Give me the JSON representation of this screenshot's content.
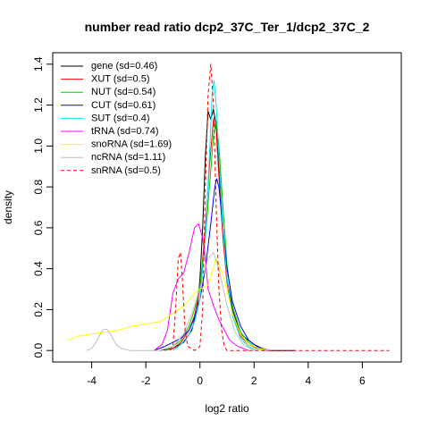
{
  "chart_data": {
    "type": "line",
    "title": "number read ratio dcp2_37C_Ter_1/dcp2_37C_2",
    "xlabel": "log2 ratio",
    "ylabel": "density",
    "xlim": [
      -5,
      7
    ],
    "ylim": [
      0,
      1.4
    ],
    "x_ticks": [
      -4,
      -2,
      0,
      2,
      4,
      6
    ],
    "x_tick_labels": [
      "-4",
      "-2",
      "0",
      "2",
      "4",
      "6"
    ],
    "y_ticks": [
      0,
      0.2,
      0.4,
      0.6,
      0.8,
      1.0,
      1.2,
      1.4
    ],
    "y_tick_labels": [
      "0.0",
      "0.2",
      "0.4",
      "0.6",
      "0.8",
      "1.0",
      "1.2",
      "1.4"
    ],
    "grid": false,
    "legend_position": "top-left",
    "series": [
      {
        "name": "gene (sd=0.46)",
        "color": "#000000",
        "dash": "solid",
        "points": [
          [
            -1.5,
            0
          ],
          [
            -1.0,
            0.01
          ],
          [
            -0.6,
            0.04
          ],
          [
            -0.3,
            0.1
          ],
          [
            -0.1,
            0.2
          ],
          [
            0.0,
            0.35
          ],
          [
            0.1,
            0.6
          ],
          [
            0.2,
            0.95
          ],
          [
            0.3,
            1.17
          ],
          [
            0.4,
            1.13
          ],
          [
            0.5,
            1.18
          ],
          [
            0.6,
            1.1
          ],
          [
            0.7,
            0.9
          ],
          [
            0.85,
            0.6
          ],
          [
            1.0,
            0.35
          ],
          [
            1.2,
            0.2
          ],
          [
            1.5,
            0.08
          ],
          [
            1.8,
            0.05
          ],
          [
            2.0,
            0.03
          ],
          [
            2.3,
            0.01
          ],
          [
            2.6,
            0
          ],
          [
            3.5,
            0
          ]
        ]
      },
      {
        "name": "XUT (sd=0.5)",
        "color": "#ff0000",
        "dash": "solid",
        "points": [
          [
            -1.3,
            0
          ],
          [
            -1.0,
            0.01
          ],
          [
            -0.7,
            0.04
          ],
          [
            -0.4,
            0.1
          ],
          [
            -0.2,
            0.17
          ],
          [
            0.0,
            0.3
          ],
          [
            0.2,
            0.6
          ],
          [
            0.35,
            0.9
          ],
          [
            0.5,
            1.13
          ],
          [
            0.6,
            1.08
          ],
          [
            0.7,
            0.85
          ],
          [
            0.85,
            0.55
          ],
          [
            1.0,
            0.33
          ],
          [
            1.2,
            0.18
          ],
          [
            1.5,
            0.07
          ],
          [
            1.8,
            0.03
          ],
          [
            2.1,
            0.01
          ],
          [
            2.5,
            0
          ]
        ]
      },
      {
        "name": "NUT (sd=0.54)",
        "color": "#00cd00",
        "dash": "solid",
        "points": [
          [
            -1.3,
            0
          ],
          [
            -1.0,
            0.02
          ],
          [
            -0.7,
            0.05
          ],
          [
            -0.4,
            0.12
          ],
          [
            -0.2,
            0.2
          ],
          [
            0.0,
            0.32
          ],
          [
            0.2,
            0.55
          ],
          [
            0.35,
            0.8
          ],
          [
            0.5,
            1.05
          ],
          [
            0.6,
            1.12
          ],
          [
            0.7,
            1.0
          ],
          [
            0.85,
            0.7
          ],
          [
            1.0,
            0.42
          ],
          [
            1.2,
            0.22
          ],
          [
            1.5,
            0.09
          ],
          [
            1.8,
            0.04
          ],
          [
            2.1,
            0.01
          ],
          [
            2.5,
            0
          ]
        ]
      },
      {
        "name": "CUT (sd=0.61)",
        "color": "#0000ff",
        "dash": "solid",
        "points": [
          [
            -1.7,
            0
          ],
          [
            -1.3,
            0.02
          ],
          [
            -1.0,
            0.04
          ],
          [
            -0.7,
            0.06
          ],
          [
            -0.4,
            0.1
          ],
          [
            -0.2,
            0.16
          ],
          [
            0.0,
            0.25
          ],
          [
            0.2,
            0.4
          ],
          [
            0.4,
            0.62
          ],
          [
            0.55,
            0.8
          ],
          [
            0.62,
            0.84
          ],
          [
            0.7,
            0.8
          ],
          [
            0.85,
            0.6
          ],
          [
            1.0,
            0.4
          ],
          [
            1.2,
            0.24
          ],
          [
            1.5,
            0.12
          ],
          [
            1.8,
            0.05
          ],
          [
            2.1,
            0.02
          ],
          [
            2.5,
            0
          ]
        ]
      },
      {
        "name": "SUT (sd=0.4)",
        "color": "#00e5ee",
        "dash": "solid",
        "points": [
          [
            -1.0,
            0
          ],
          [
            -0.7,
            0.03
          ],
          [
            -0.4,
            0.08
          ],
          [
            -0.2,
            0.14
          ],
          [
            0.0,
            0.25
          ],
          [
            0.2,
            0.55
          ],
          [
            0.35,
            0.95
          ],
          [
            0.45,
            1.25
          ],
          [
            0.52,
            1.32
          ],
          [
            0.6,
            1.2
          ],
          [
            0.7,
            0.95
          ],
          [
            0.85,
            0.6
          ],
          [
            1.0,
            0.35
          ],
          [
            1.2,
            0.17
          ],
          [
            1.5,
            0.06
          ],
          [
            1.8,
            0.02
          ],
          [
            2.1,
            0
          ]
        ]
      },
      {
        "name": "tRNA (sd=0.74)",
        "color": "#ff00ff",
        "dash": "solid",
        "points": [
          [
            -1.7,
            0
          ],
          [
            -1.4,
            0.03
          ],
          [
            -1.2,
            0.1
          ],
          [
            -1.0,
            0.28
          ],
          [
            -0.8,
            0.35
          ],
          [
            -0.6,
            0.38
          ],
          [
            -0.4,
            0.48
          ],
          [
            -0.2,
            0.6
          ],
          [
            -0.05,
            0.62
          ],
          [
            0.1,
            0.55
          ],
          [
            0.2,
            0.45
          ],
          [
            0.3,
            0.3
          ],
          [
            0.5,
            0.22
          ],
          [
            0.7,
            0.15
          ],
          [
            0.9,
            0.1
          ],
          [
            1.1,
            0.05
          ],
          [
            1.4,
            0.02
          ],
          [
            1.8,
            0
          ]
        ]
      },
      {
        "name": "snoRNA (sd=1.69)",
        "color": "#ffff00",
        "dash": "solid",
        "points": [
          [
            -4.9,
            0.05
          ],
          [
            -4.5,
            0.07
          ],
          [
            -4.0,
            0.08
          ],
          [
            -3.5,
            0.09
          ],
          [
            -3.0,
            0.1
          ],
          [
            -2.5,
            0.12
          ],
          [
            -2.0,
            0.13
          ],
          [
            -1.5,
            0.14
          ],
          [
            -1.0,
            0.18
          ],
          [
            -0.5,
            0.23
          ],
          [
            -0.2,
            0.28
          ],
          [
            0.0,
            0.3
          ],
          [
            0.3,
            0.32
          ],
          [
            0.6,
            0.45
          ],
          [
            0.9,
            0.35
          ],
          [
            1.2,
            0.18
          ],
          [
            1.5,
            0.08
          ],
          [
            1.8,
            0.03
          ],
          [
            2.2,
            0.01
          ],
          [
            2.6,
            0
          ]
        ]
      },
      {
        "name": "ncRNA (sd=1.11)",
        "color": "#bebebe",
        "dash": "solid",
        "points": [
          [
            -4.2,
            0
          ],
          [
            -4.0,
            0.01
          ],
          [
            -3.8,
            0.05
          ],
          [
            -3.6,
            0.1
          ],
          [
            -3.45,
            0.105
          ],
          [
            -3.3,
            0.08
          ],
          [
            -3.1,
            0.03
          ],
          [
            -2.9,
            0.01
          ],
          [
            -2.6,
            0
          ],
          [
            -1.5,
            0
          ],
          [
            -1.0,
            0.02
          ],
          [
            -0.6,
            0.08
          ],
          [
            -0.3,
            0.18
          ],
          [
            0.0,
            0.3
          ],
          [
            0.3,
            0.45
          ],
          [
            0.5,
            0.48
          ],
          [
            0.7,
            0.4
          ],
          [
            1.0,
            0.22
          ],
          [
            1.3,
            0.09
          ],
          [
            1.6,
            0.03
          ],
          [
            2.0,
            0
          ]
        ]
      },
      {
        "name": "snRNA (sd=0.5)",
        "color": "#ff0000",
        "dash": "dashed",
        "points": [
          [
            -1.1,
            0
          ],
          [
            -1.0,
            0.02
          ],
          [
            -0.9,
            0.2
          ],
          [
            -0.8,
            0.45
          ],
          [
            -0.72,
            0.48
          ],
          [
            -0.65,
            0.35
          ],
          [
            -0.55,
            0.1
          ],
          [
            -0.45,
            0.02
          ],
          [
            -0.2,
            0
          ],
          [
            0.0,
            0.02
          ],
          [
            0.1,
            0.2
          ],
          [
            0.2,
            0.8
          ],
          [
            0.3,
            1.25
          ],
          [
            0.4,
            1.4
          ],
          [
            0.5,
            1.2
          ],
          [
            0.6,
            0.7
          ],
          [
            0.7,
            0.3
          ],
          [
            0.8,
            0.1
          ],
          [
            0.9,
            0.02
          ],
          [
            1.0,
            0
          ],
          [
            7.0,
            0
          ]
        ]
      }
    ]
  }
}
